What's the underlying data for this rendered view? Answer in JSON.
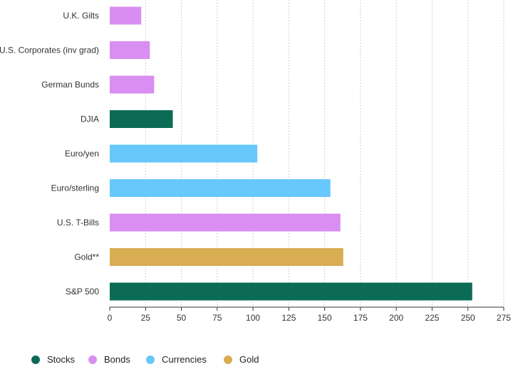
{
  "chart_data": {
    "type": "bar",
    "orientation": "horizontal",
    "categories": [
      "U.K. Gilts",
      "U.S. Corporates (inv grad)",
      "German Bunds",
      "DJIA",
      "Euro/yen",
      "Euro/sterling",
      "U.S. T-Bills",
      "Gold**",
      "S&P 500"
    ],
    "values": [
      22,
      28,
      31,
      44,
      103,
      154,
      161,
      163,
      253
    ],
    "bar_groups": [
      "Bonds",
      "Bonds",
      "Bonds",
      "Stocks",
      "Currencies",
      "Currencies",
      "Bonds",
      "Gold",
      "Stocks"
    ],
    "xlim": [
      0,
      275
    ],
    "xticks": [
      0,
      25,
      50,
      75,
      100,
      125,
      150,
      175,
      200,
      225,
      250,
      275
    ],
    "grid": "vertical",
    "legend": {
      "placement": "bottom",
      "items": [
        {
          "label": "Stocks",
          "color": "#0b6b55"
        },
        {
          "label": "Bonds",
          "color": "#d98ef2"
        },
        {
          "label": "Currencies",
          "color": "#66c8fb"
        },
        {
          "label": "Gold",
          "color": "#d9ad52"
        }
      ]
    },
    "title": "",
    "xlabel": "",
    "ylabel": ""
  }
}
